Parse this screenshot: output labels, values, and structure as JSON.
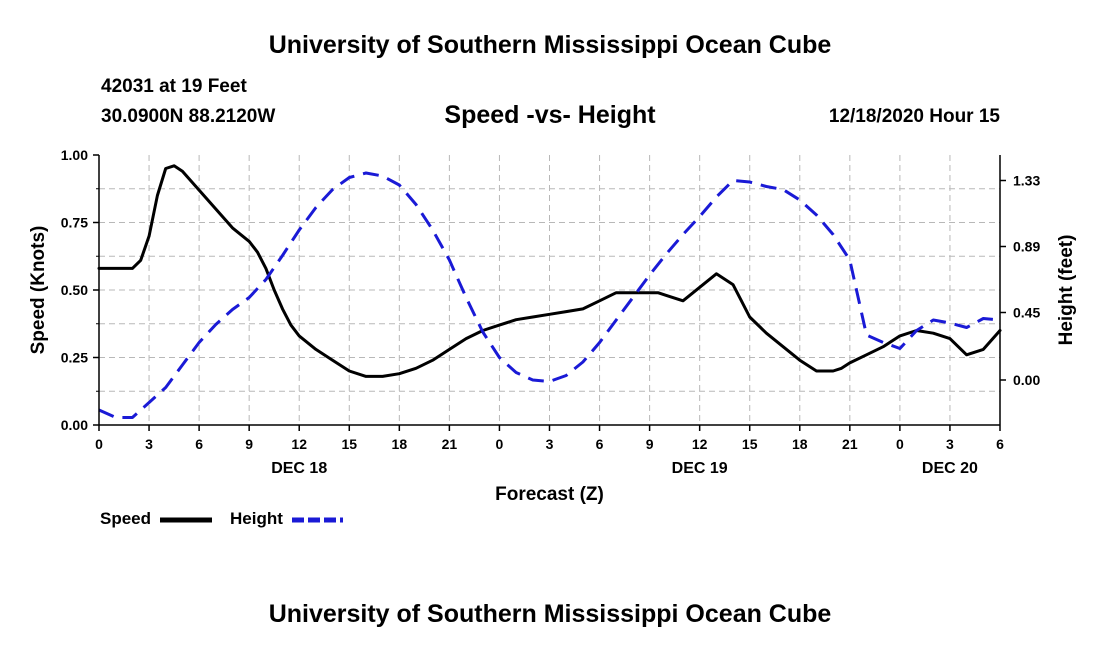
{
  "header": {
    "title": "University of Southern Mississippi Ocean Cube",
    "station": "42031 at 19 Feet",
    "coords": "30.0900N 88.2120W",
    "subtitle": "Speed -vs- Height",
    "date_hour": "12/18/2020 Hour 15"
  },
  "footer": {
    "title": "University of Southern Mississippi Ocean Cube"
  },
  "legend": {
    "speed": "Speed",
    "height": "Height"
  },
  "colors": {
    "speed": "#000000",
    "height": "#1a1ad6",
    "grid": "#b8b8b8"
  },
  "chart_data": {
    "type": "line",
    "title": "Speed -vs- Height",
    "xlabel": "Forecast (Z)",
    "ylabel": "Speed (Knots)",
    "y2label": "Height (feet)",
    "xlim": [
      0,
      54
    ],
    "ylim": [
      0,
      1
    ],
    "y2lim": [
      -0.3,
      1.5
    ],
    "x_ticks": [
      0,
      3,
      6,
      9,
      12,
      15,
      18,
      21,
      24,
      27,
      30,
      33,
      36,
      39,
      42,
      45,
      48,
      51,
      54
    ],
    "x_tick_labels": [
      "0",
      "3",
      "6",
      "9",
      "12",
      "15",
      "18",
      "21",
      "0",
      "3",
      "6",
      "9",
      "12",
      "15",
      "18",
      "21",
      "0",
      "3",
      "6"
    ],
    "date_labels": [
      {
        "x": 12,
        "label": "DEC 18"
      },
      {
        "x": 36,
        "label": "DEC 19"
      },
      {
        "x": 51,
        "label": "DEC 20"
      }
    ],
    "y_ticks": [
      0.0,
      0.25,
      0.5,
      0.75,
      1.0
    ],
    "y_tick_labels": [
      "0.00",
      "0.25",
      "0.50",
      "0.75",
      "1.00"
    ],
    "y2_ticks": [
      0.0,
      0.45,
      0.89,
      1.33
    ],
    "y2_tick_labels": [
      "0.00",
      "0.45",
      "0.89",
      "1.33"
    ],
    "grid": true,
    "series": [
      {
        "name": "Speed",
        "axis": "left",
        "style": "solid",
        "x": [
          0,
          1,
          2,
          2.5,
          3,
          3.5,
          4,
          4.5,
          5,
          6,
          7,
          8,
          9,
          9.5,
          10,
          10.5,
          11,
          11.5,
          12,
          13,
          14,
          15,
          16,
          17,
          18,
          19,
          20,
          21,
          22,
          23,
          24,
          25,
          26,
          27,
          28,
          29,
          30,
          31,
          32,
          33,
          33.5,
          34,
          35,
          36,
          37,
          38,
          38.5,
          39,
          40,
          41,
          42,
          43,
          44,
          44.5,
          45,
          46,
          47,
          48,
          49,
          50,
          51,
          52,
          53,
          54
        ],
        "y": [
          0.58,
          0.58,
          0.58,
          0.61,
          0.7,
          0.85,
          0.95,
          0.96,
          0.94,
          0.87,
          0.8,
          0.73,
          0.68,
          0.64,
          0.58,
          0.5,
          0.43,
          0.37,
          0.33,
          0.28,
          0.24,
          0.2,
          0.18,
          0.18,
          0.19,
          0.21,
          0.24,
          0.28,
          0.32,
          0.35,
          0.37,
          0.39,
          0.4,
          0.41,
          0.42,
          0.43,
          0.46,
          0.49,
          0.49,
          0.49,
          0.49,
          0.48,
          0.46,
          0.51,
          0.56,
          0.52,
          0.46,
          0.4,
          0.34,
          0.29,
          0.24,
          0.2,
          0.2,
          0.21,
          0.23,
          0.26,
          0.29,
          0.33,
          0.35,
          0.34,
          0.32,
          0.26,
          0.28,
          0.35
        ]
      },
      {
        "name": "Height",
        "axis": "right",
        "style": "dashed",
        "x": [
          0,
          1,
          2,
          3,
          4,
          5,
          6,
          7,
          8,
          9,
          10,
          11,
          12,
          13,
          14,
          15,
          16,
          17,
          18,
          19,
          20,
          21,
          22,
          23,
          24,
          25,
          26,
          27,
          28,
          29,
          30,
          31,
          32,
          33,
          34,
          35,
          36,
          37,
          38,
          39,
          40,
          41,
          42,
          43,
          44,
          45,
          46,
          47,
          48,
          49,
          50,
          51,
          52,
          53,
          54
        ],
        "y": [
          -0.2,
          -0.25,
          -0.25,
          -0.15,
          -0.05,
          0.1,
          0.25,
          0.37,
          0.47,
          0.55,
          0.67,
          0.83,
          1.0,
          1.15,
          1.27,
          1.35,
          1.38,
          1.36,
          1.3,
          1.17,
          1.0,
          0.8,
          0.55,
          0.32,
          0.15,
          0.05,
          0.0,
          -0.01,
          0.03,
          0.12,
          0.25,
          0.4,
          0.55,
          0.7,
          0.84,
          0.97,
          1.09,
          1.22,
          1.33,
          1.32,
          1.29,
          1.27,
          1.2,
          1.1,
          0.97,
          0.8,
          0.3,
          0.25,
          0.21,
          0.33,
          0.4,
          0.38,
          0.35,
          0.41,
          0.4
        ]
      }
    ]
  }
}
